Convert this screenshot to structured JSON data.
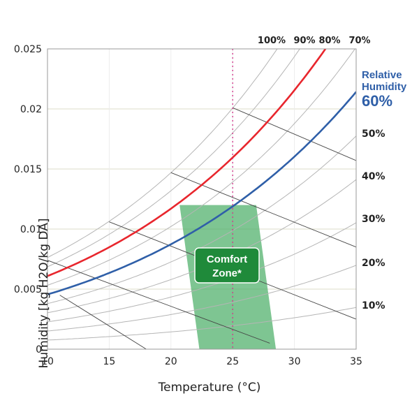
{
  "chart_data": {
    "type": "line",
    "title": "",
    "xlabel": "Temperature (°C)",
    "ylabel": "Humidity [kg H2O/kg DA]",
    "xlim": [
      10,
      35
    ],
    "ylim": [
      0,
      0.025
    ],
    "x_ticks": [
      "10",
      "15",
      "20",
      "25",
      "30",
      "35"
    ],
    "y_ticks": [
      "0",
      "0.005",
      "0.01",
      "0.015",
      "0.02",
      "0.025"
    ],
    "x_tick_values": [
      10,
      15,
      20,
      25,
      30,
      35
    ],
    "y_tick_values": [
      0,
      0.005,
      0.01,
      0.015,
      0.02,
      0.025
    ],
    "grid": true,
    "rh_curves": [
      {
        "rh": 0.1,
        "label": "10%"
      },
      {
        "rh": 0.2,
        "label": "20%"
      },
      {
        "rh": 0.3,
        "label": "30%"
      },
      {
        "rh": 0.4,
        "label": "40%"
      },
      {
        "rh": 0.5,
        "label": "50%"
      },
      {
        "rh": 0.6,
        "label": "60%"
      },
      {
        "rh": 0.7,
        "label": "70%"
      },
      {
        "rh": 0.8,
        "label": "80%"
      },
      {
        "rh": 0.9,
        "label": "90%"
      },
      {
        "rh": 1.0,
        "label": "100%"
      }
    ],
    "highlighted": [
      {
        "rh": 0.8,
        "color": "#e8262d"
      },
      {
        "rh": 0.6,
        "color": "#2f5fa8"
      }
    ],
    "right_rh_labels": [
      "50%",
      "40%",
      "30%",
      "20%",
      "10%"
    ],
    "top_rh_labels": [
      "100%",
      "90%",
      "80%",
      "70%"
    ],
    "reference_line": {
      "x": 25,
      "color": "#d33a8c",
      "style": "dotted"
    },
    "wet_bulb_lines": [
      {
        "x1": 11,
        "y1": 0.0045,
        "x2": 18,
        "y2": 0.0
      },
      {
        "x1": 10,
        "y1": 0.0074,
        "x2": 28,
        "y2": 0.0005
      },
      {
        "x1": 15,
        "y1": 0.0106,
        "x2": 35,
        "y2": 0.0025
      },
      {
        "x1": 20,
        "y1": 0.0147,
        "x2": 35,
        "y2": 0.0085
      },
      {
        "x1": 25,
        "y1": 0.0201,
        "x2": 35,
        "y2": 0.0157
      }
    ],
    "comfort_zone": {
      "polygon": [
        [
          20.7,
          0.012
        ],
        [
          26.9,
          0.012
        ],
        [
          28.5,
          0.0
        ],
        [
          22.3,
          0.0
        ]
      ],
      "label_line1": "Comfort",
      "label_line2": "Zone*",
      "fill": "#4caf68",
      "label_bg": "#1f8a3a"
    },
    "legend": {
      "line1": "Relative",
      "line2": "Humidity",
      "value": "60%",
      "color": "#2f5fa8"
    }
  }
}
